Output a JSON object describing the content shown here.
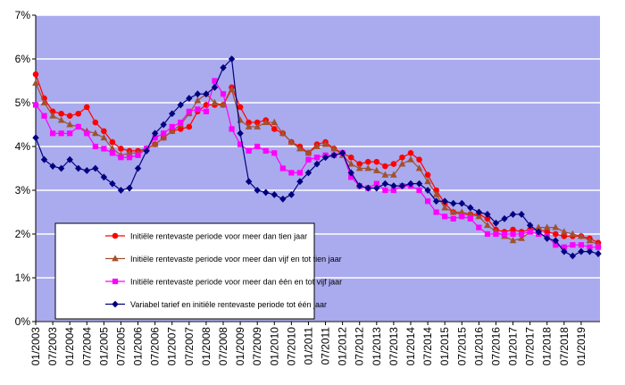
{
  "chart_data": {
    "type": "line",
    "categories": [
      "01/2003",
      null,
      "07/2003",
      null,
      "01/2004",
      null,
      "07/2004",
      null,
      "01/2005",
      null,
      "07/2005",
      null,
      "01/2006",
      null,
      "07/2006",
      null,
      "01/2007",
      null,
      "07/2007",
      null,
      "01/2008",
      null,
      "07/2008",
      null,
      "01/2009",
      null,
      "07/2009",
      null,
      "01/2010",
      null,
      "07/2010",
      null,
      "01/2011",
      null,
      "07/2011",
      null,
      "01/2012",
      null,
      "07/2012",
      null,
      "01/2013",
      null,
      "07/2013",
      null,
      "01/2014",
      null,
      "07/2014",
      null,
      "01/2015",
      null,
      "07/2015",
      null,
      "01/2016",
      null,
      "07/2016",
      null,
      "01/2017",
      null,
      "07/2017",
      null,
      "01/2018",
      null,
      "07/2018",
      null,
      "01/2019",
      null,
      null
    ],
    "series": [
      {
        "name": "Initiële rentevaste periode voor meer dan tien jaar",
        "color": "#ff0000",
        "marker": "circle",
        "values": [
          5.65,
          5.1,
          4.8,
          4.75,
          4.7,
          4.75,
          4.9,
          4.55,
          4.35,
          4.1,
          3.95,
          3.9,
          3.9,
          3.95,
          4.05,
          4.2,
          4.35,
          4.4,
          4.45,
          4.8,
          4.95,
          4.95,
          4.95,
          5.35,
          4.9,
          4.55,
          4.55,
          4.6,
          4.4,
          4.3,
          4.1,
          4.0,
          3.85,
          4.05,
          4.1,
          3.95,
          3.85,
          3.75,
          3.6,
          3.65,
          3.65,
          3.55,
          3.6,
          3.75,
          3.85,
          3.7,
          3.35,
          3.0,
          2.7,
          2.5,
          2.45,
          2.45,
          2.45,
          2.35,
          2.1,
          2.05,
          2.1,
          2.05,
          2.1,
          2.1,
          2.05,
          2.0,
          1.95,
          1.95,
          1.95,
          1.9,
          1.8
        ]
      },
      {
        "name": "Initiële rentevaste periode voor meer dan vijf en tot tien jaar",
        "color": "#a0522d",
        "marker": "triangle",
        "values": [
          5.45,
          5.0,
          4.7,
          4.6,
          4.5,
          4.45,
          4.35,
          4.3,
          4.2,
          3.95,
          3.8,
          3.85,
          3.85,
          3.95,
          4.05,
          4.2,
          4.35,
          4.5,
          4.75,
          5.05,
          5.2,
          5.0,
          4.95,
          5.3,
          4.6,
          4.45,
          4.45,
          4.55,
          4.55,
          4.3,
          4.1,
          3.95,
          3.85,
          4.0,
          4.05,
          3.95,
          3.8,
          3.6,
          3.5,
          3.5,
          3.45,
          3.35,
          3.35,
          3.6,
          3.7,
          3.5,
          3.2,
          2.9,
          2.6,
          2.5,
          2.5,
          2.45,
          2.4,
          2.2,
          2.05,
          1.95,
          1.85,
          1.9,
          2.05,
          2.15,
          2.15,
          2.15,
          2.05,
          2.0,
          1.95,
          1.85,
          1.75
        ]
      },
      {
        "name": "Initiële rentevaste periode voor meer dan één en tot vijf jaar",
        "color": "#ff00ff",
        "marker": "square",
        "values": [
          4.95,
          4.7,
          4.3,
          4.3,
          4.3,
          4.45,
          4.3,
          4.0,
          3.95,
          3.85,
          3.75,
          3.75,
          3.8,
          3.95,
          4.2,
          4.3,
          4.45,
          4.55,
          4.8,
          4.85,
          4.8,
          5.5,
          5.2,
          4.4,
          4.05,
          3.9,
          4.0,
          3.9,
          3.85,
          3.5,
          3.4,
          3.4,
          3.7,
          3.75,
          3.8,
          3.8,
          3.85,
          3.3,
          3.1,
          3.05,
          3.15,
          3.0,
          3.0,
          3.1,
          3.1,
          3.0,
          2.75,
          2.5,
          2.4,
          2.35,
          2.4,
          2.35,
          2.15,
          2.0,
          2.0,
          2.0,
          2.0,
          2.0,
          2.05,
          2.0,
          1.95,
          1.75,
          1.7,
          1.75,
          1.75,
          1.7,
          1.7
        ]
      },
      {
        "name": "Variabel tarief en initiële rentevaste periode tot één jaar",
        "color": "#000080",
        "marker": "diamond",
        "values": [
          4.2,
          3.7,
          3.55,
          3.5,
          3.7,
          3.5,
          3.45,
          3.5,
          3.3,
          3.15,
          3.0,
          3.05,
          3.5,
          3.9,
          4.3,
          4.5,
          4.75,
          4.95,
          5.1,
          5.2,
          5.2,
          5.35,
          5.8,
          6.0,
          4.3,
          3.2,
          3.0,
          2.95,
          2.9,
          2.8,
          2.9,
          3.2,
          3.4,
          3.6,
          3.75,
          3.8,
          3.85,
          3.4,
          3.1,
          3.05,
          3.05,
          3.15,
          3.1,
          3.1,
          3.15,
          3.15,
          3.0,
          2.75,
          2.75,
          2.7,
          2.7,
          2.6,
          2.5,
          2.45,
          2.25,
          2.35,
          2.45,
          2.45,
          2.2,
          2.05,
          1.9,
          1.85,
          1.6,
          1.5,
          1.6,
          1.6,
          1.55
        ]
      }
    ],
    "ylim": [
      0,
      7
    ],
    "yticks": [
      {
        "value": 0,
        "label": "0%"
      },
      {
        "value": 1,
        "label": "1%"
      },
      {
        "value": 2,
        "label": "2%"
      },
      {
        "value": 3,
        "label": "3%"
      },
      {
        "value": 4,
        "label": "4%"
      },
      {
        "value": 5,
        "label": "5%"
      },
      {
        "value": 6,
        "label": "6%"
      },
      {
        "value": 7,
        "label": "7%"
      }
    ],
    "grid": true,
    "legend": "lower left",
    "background": "#aaaaee"
  }
}
